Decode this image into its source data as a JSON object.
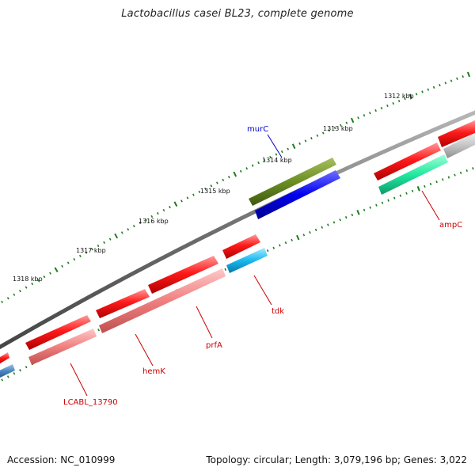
{
  "title": "Lactobacillus casei BL23, complete genome",
  "footer": {
    "accession": "Accession: NC_010999",
    "topology": "Topology: circular; Length: 3,079,196 bp; Genes: 3,022"
  },
  "colors": {
    "backbone": "#7a7a7a",
    "ticks": "#1f7a1f",
    "red_gene": "#ee1111",
    "pink_gene": "#ee8080",
    "label_red": "#cc0000",
    "label_blue": "#0000cc"
  },
  "kbp_labels": [
    "1312 kbp",
    "1313 kbp",
    "1314 kbp",
    "1315 kbp",
    "1316 kbp",
    "1317 kbp",
    "1318 kbp"
  ],
  "gene_labels": {
    "murC": "murC",
    "ampC": "ampC",
    "tdk": "tdk",
    "prfA": "prfA",
    "hemK": "hemK",
    "LCABL_13790": "LCABL_13790"
  }
}
